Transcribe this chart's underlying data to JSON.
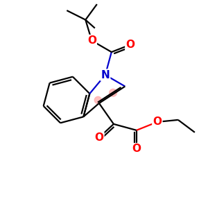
{
  "bg_color": "#ffffff",
  "bond_color": "#000000",
  "N_color": "#0000cd",
  "O_color": "#ff0000",
  "highlight_color": "#ffaaaa",
  "line_width": 1.6,
  "font_size_atom": 10,
  "fig_size": [
    3.0,
    3.0
  ],
  "dpi": 100,
  "xlim": [
    0,
    10
  ],
  "ylim": [
    0,
    10
  ]
}
